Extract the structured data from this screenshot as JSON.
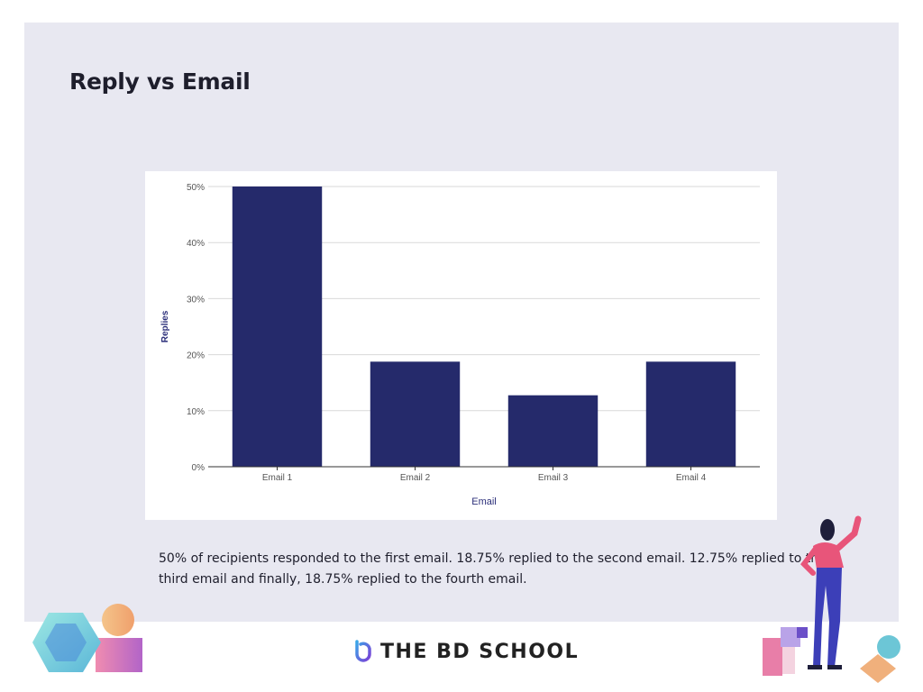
{
  "slide": {
    "title": "Reply vs Email",
    "caption_line1": "50% of recipients responded to the first email. 18.75% replied to the second email. 12.75% replied to the",
    "caption_line2": "third email and finally, 18.75% replied to the fourth email."
  },
  "brand": {
    "name": "THE BD SCHOOL"
  },
  "colors": {
    "bar": "#252a6b",
    "slide_bg": "#e8e8f1",
    "axis_label": "#2c2f7a"
  },
  "chart_data": {
    "type": "bar",
    "categories": [
      "Email 1",
      "Email 2",
      "Email 3",
      "Email 4"
    ],
    "values": [
      50,
      18.75,
      12.75,
      18.75
    ],
    "xlabel": "Email",
    "ylabel": "Replies",
    "ylim": [
      0,
      50
    ],
    "yticks": [
      "0%",
      "10%",
      "20%",
      "30%",
      "40%",
      "50%"
    ],
    "grid": true
  }
}
